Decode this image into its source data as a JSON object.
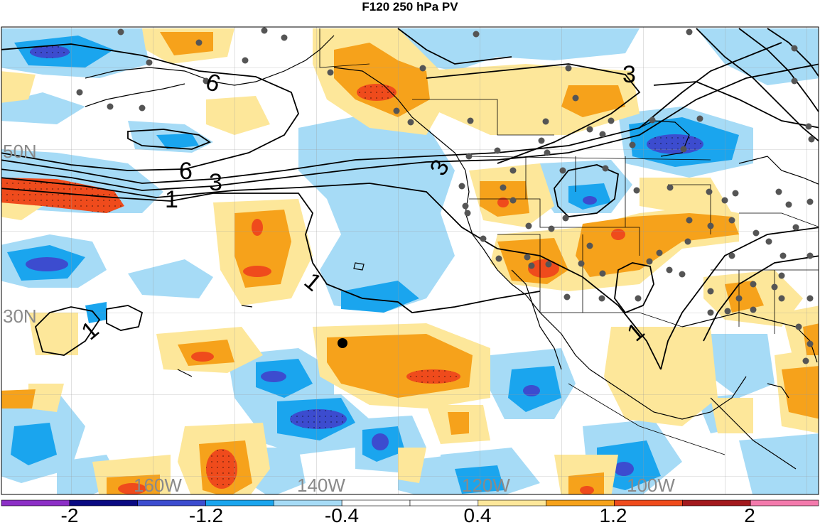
{
  "title": "F120 250 hPa PV",
  "latitude_labels": [
    "50N",
    "30N"
  ],
  "longitude_labels": [
    "160W",
    "140W",
    "120W",
    "100W"
  ],
  "contour_labels": [
    "6",
    "3",
    "6",
    "3",
    "1",
    "3",
    "1",
    "1",
    "1"
  ],
  "colorbar": {
    "colors": [
      "#8c2fc6",
      "#0a0a82",
      "#3c4ccf",
      "#1aa5ee",
      "#a6dbf6",
      "#ffffff",
      "#ffffff",
      "#fde79a",
      "#f6a21b",
      "#ef4b1c",
      "#a3191d",
      "#f37aac"
    ],
    "tick_labels": [
      "-2",
      "-1.2",
      "-0.4",
      "0.4",
      "1.2",
      "2"
    ]
  },
  "marked_point_color": "#000000",
  "station_color": "#555555"
}
